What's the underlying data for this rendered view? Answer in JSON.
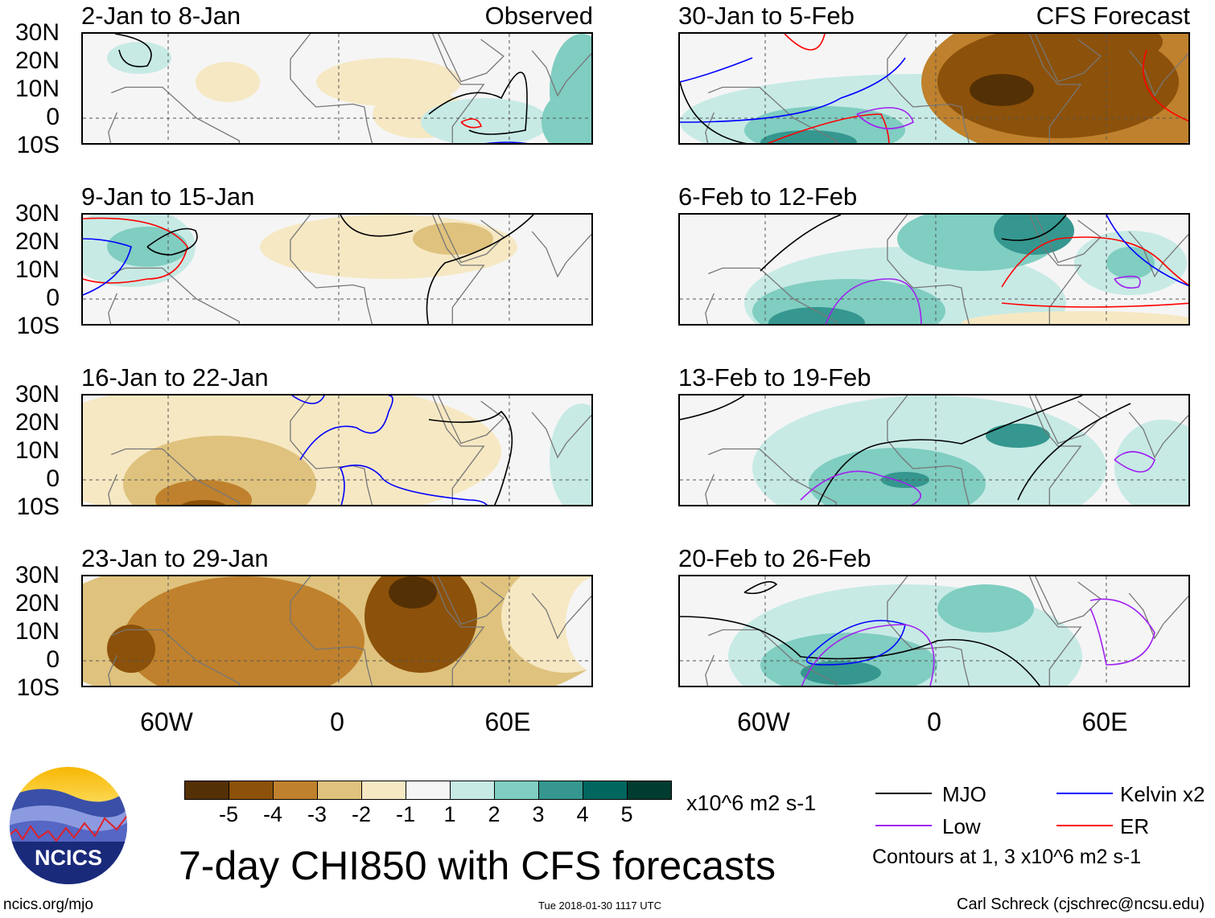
{
  "panels": [
    {
      "title": "2-Jan to 8-Jan",
      "tag": "Observed"
    },
    {
      "title": "30-Jan to 5-Feb",
      "tag": "CFS Forecast"
    },
    {
      "title": "9-Jan to 15-Jan"
    },
    {
      "title": "6-Feb to 12-Feb"
    },
    {
      "title": "16-Jan to 22-Jan"
    },
    {
      "title": "13-Feb to 19-Feb"
    },
    {
      "title": "23-Jan to 29-Jan"
    },
    {
      "title": "20-Feb to 26-Feb"
    }
  ],
  "lat_labels": [
    "30N",
    "20N",
    "10N",
    "0",
    "10S"
  ],
  "lon_labels": [
    "60W",
    "0",
    "60E"
  ],
  "colorbar": {
    "colors": [
      "#543005",
      "#8c510a",
      "#bf812d",
      "#dfc27d",
      "#f6e8c3",
      "#f5f5f5",
      "#c7eae5",
      "#80cdc1",
      "#35978f",
      "#01665e",
      "#003c30"
    ],
    "labels": [
      "-5",
      "-4",
      "-3",
      "-2",
      "-1",
      "1",
      "2",
      "3",
      "4",
      "5"
    ],
    "units": "x10^6 m2 s-1"
  },
  "legend": {
    "items": [
      {
        "label": "MJO",
        "color": "#000000"
      },
      {
        "label": "Kelvin x2",
        "color": "#0000ff"
      },
      {
        "label": "Low",
        "color": "#a020f0"
      },
      {
        "label": "ER",
        "color": "#ff0000"
      }
    ],
    "note": "Contours at 1, 3 x10^6 m2 s-1"
  },
  "title": "7-day CHI850 with CFS forecasts",
  "logo_text": "NCICS",
  "url": "ncics.org/mjo",
  "timestamp": "Tue 2018-01-30 1117 UTC",
  "credit": "Carl Schreck (cjschrec@ncsu.edu)"
}
